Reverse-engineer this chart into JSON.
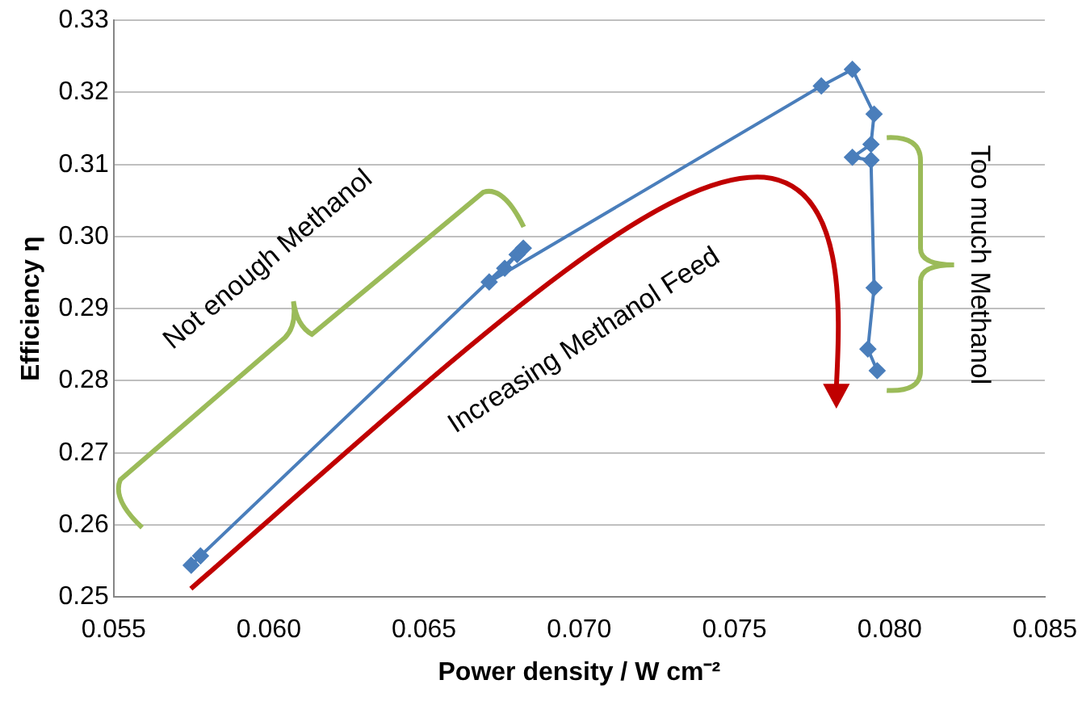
{
  "chart_data": {
    "type": "line",
    "xlabel": "Power density / W cm⁻²",
    "ylabel": "Efficiency η",
    "x": [
      0.0575,
      0.0578,
      0.0682,
      0.068,
      0.0676,
      0.0671,
      0.0778,
      0.0788,
      0.0795,
      0.0794,
      0.0788,
      0.0794,
      0.0795,
      0.0793,
      0.0796
    ],
    "series": [
      {
        "color": "#4a7ebb",
        "values": [
          0.2544,
          0.2557,
          0.2984,
          0.2975,
          0.2956,
          0.2937,
          0.3209,
          0.3232,
          0.317,
          0.3128,
          0.311,
          0.3106,
          0.2929,
          0.2844,
          0.2814
        ]
      }
    ],
    "xlim": [
      0.055,
      0.085
    ],
    "xticks": [
      0.055,
      {
        "value": 0.06,
        "label": "0.060"
      },
      0.065,
      {
        "value": 0.07,
        "label": "0.070"
      },
      0.075,
      {
        "value": 0.08,
        "label": "0.080"
      },
      0.085
    ],
    "ylim": [
      0.25,
      0.33
    ],
    "yticks": [
      0.25,
      0.26,
      0.27,
      0.28,
      0.29,
      {
        "value": 0.3,
        "label": "0.30"
      },
      0.31,
      0.32,
      0.33
    ],
    "grid": "y",
    "legend": false,
    "marker": "diamond",
    "line_style": "solid",
    "annotations": [
      "Not enough Methanol",
      "Increasing Methanol Feed",
      "Too much Methanol"
    ]
  }
}
